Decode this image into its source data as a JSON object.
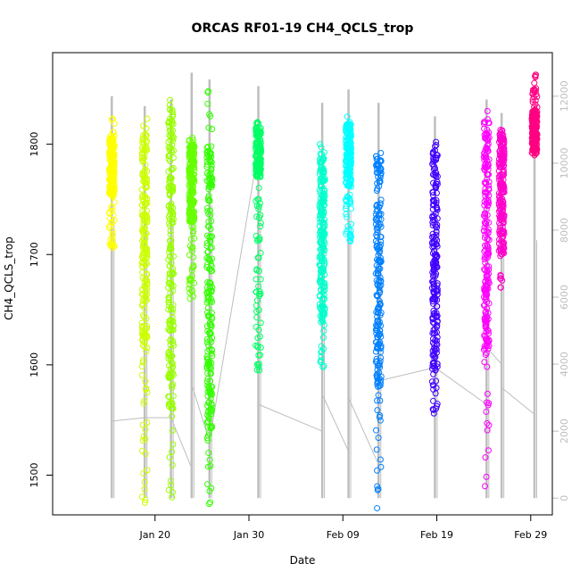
{
  "chart_data": {
    "type": "scatter",
    "title": "ORCAS RF01-19 CH4_QCLS_trop",
    "xlabel": "Date",
    "ylabel": "CH4_QCLS_trop",
    "x_ticks": [
      {
        "date": "Jan 20",
        "day": 20
      },
      {
        "date": "Jan 30",
        "day": 30
      },
      {
        "date": "Feb 09",
        "day": 40
      },
      {
        "date": "Feb 19",
        "day": 50
      },
      {
        "date": "Feb 29",
        "day": 60
      }
    ],
    "xlim_days": [
      9.1,
      62.3
    ],
    "y_ticks": [
      "1500",
      "1600",
      "1700",
      "1800"
    ],
    "ylim": [
      1464,
      1883
    ],
    "y2_ticks": [
      "0",
      "2000",
      "4000",
      "6000",
      "8000",
      "10000",
      "12000"
    ],
    "y2lim": [
      -500,
      13300
    ],
    "y2_color": "#bebebe",
    "series": [
      {
        "day": 15.4,
        "ymin": 1706,
        "ymax": 1823,
        "ydense": [
          1752,
          1808
        ],
        "color": "#ffff00",
        "alt_max": 12000,
        "alt_low": 2300,
        "next_alt": 2400
      },
      {
        "day": 18.9,
        "ymin": 1475,
        "ymax": 1823,
        "ydense": [
          1620,
          1815
        ],
        "color": "#ccff00",
        "alt_max": 11700,
        "alt_low": 2400,
        "next_alt": 2400
      },
      {
        "day": 21.7,
        "ymin": 1480,
        "ymax": 1840,
        "ydense": [
          1560,
          1835
        ],
        "color": "#99ff00",
        "alt_max": 11900,
        "alt_low": 2400,
        "next_alt": 900
      },
      {
        "day": 23.9,
        "ymin": 1660,
        "ymax": 1806,
        "ydense": [
          1730,
          1800
        ],
        "color": "#66ff00",
        "alt_max": 12700,
        "alt_low": 3400,
        "next_alt": 1700
      },
      {
        "day": 25.8,
        "ymin": 1474,
        "ymax": 1848,
        "ydense": [
          1530,
          1800
        ],
        "color": "#33ff00",
        "alt_max": 12500,
        "alt_low": 1700,
        "next_alt": 10400
      },
      {
        "day": 31.0,
        "ymin": 1595,
        "ymax": 1820,
        "ydense": [
          1770,
          1815
        ],
        "color": "#00ff66",
        "alt_max": 12300,
        "alt_low": 2800,
        "next_alt": 2000
      },
      {
        "day": 37.8,
        "ymin": 1598,
        "ymax": 1800,
        "ydense": [
          1640,
          1795
        ],
        "color": "#00ffcc",
        "alt_max": 11800,
        "alt_low": 3100,
        "next_alt": 1400
      },
      {
        "day": 40.6,
        "ymin": 1712,
        "ymax": 1825,
        "ydense": [
          1760,
          1820
        ],
        "color": "#00ffff",
        "alt_max": 12200,
        "alt_low": 3000,
        "next_alt": 1000
      },
      {
        "day": 43.8,
        "ymin": 1470,
        "ymax": 1792,
        "ydense": [
          1580,
          1790
        ],
        "color": "#0080ff",
        "alt_max": 11800,
        "alt_low": 3500,
        "next_alt": 3900
      },
      {
        "day": 49.8,
        "ymin": 1556,
        "ymax": 1802,
        "ydense": [
          1595,
          1800
        ],
        "color": "#4000ff",
        "alt_max": 11400,
        "alt_low": 3900,
        "next_alt": 2800
      },
      {
        "day": 55.3,
        "ymin": 1490,
        "ymax": 1830,
        "ydense": [
          1610,
          1825
        ],
        "color": "#ff00ff",
        "alt_max": 11900,
        "alt_low": 4500,
        "next_alt": 4000
      },
      {
        "day": 56.9,
        "ymin": 1670,
        "ymax": 1813,
        "ydense": [
          1700,
          1810
        ],
        "color": "#ff00cc",
        "alt_max": 11500,
        "alt_low": 3300,
        "next_alt": 2500
      },
      {
        "day": 60.4,
        "ymin": 1790,
        "ymax": 1863,
        "ydense": [
          1795,
          1830
        ],
        "color": "#ff0080",
        "alt_max": 11000,
        "alt_low": 2900,
        "next_alt": 2900
      }
    ]
  }
}
